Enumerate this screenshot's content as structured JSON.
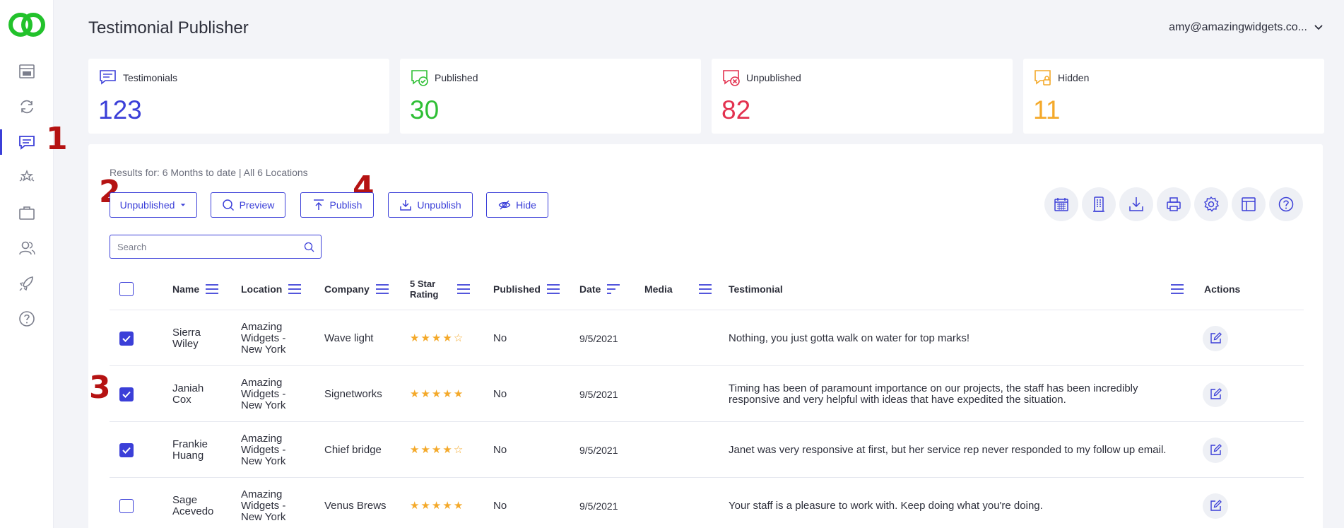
{
  "app": {
    "title": "Testimonial Publisher",
    "user_email": "amy@amazingwidgets.co..."
  },
  "sidebar": {
    "items": [
      {
        "icon": "dashboard-icon"
      },
      {
        "icon": "sync-icon"
      },
      {
        "icon": "testimonials-icon",
        "active": true
      },
      {
        "icon": "rating-stars-icon"
      },
      {
        "icon": "briefcase-icon"
      },
      {
        "icon": "users-icon"
      },
      {
        "icon": "rocket-icon"
      },
      {
        "icon": "help-icon"
      }
    ]
  },
  "annotations": {
    "a1": "1",
    "a2": "2",
    "a3": "3",
    "a4": "4"
  },
  "stats": [
    {
      "label": "Testimonials",
      "value": "123",
      "color": "#3b3fd8"
    },
    {
      "label": "Published",
      "value": "30",
      "color": "#2fbf35"
    },
    {
      "label": "Unpublished",
      "value": "82",
      "color": "#e3314f"
    },
    {
      "label": "Hidden",
      "value": "11",
      "color": "#f4a92a"
    }
  ],
  "filters": {
    "results_text": "Results for: 6 Months to date | All 6 Locations"
  },
  "toolbar": {
    "status_select": "Unpublished",
    "preview": "Preview",
    "publish": "Publish",
    "unpublish": "Unpublish",
    "hide": "Hide"
  },
  "search": {
    "placeholder": "Search"
  },
  "table": {
    "headers": {
      "name": "Name",
      "location": "Location",
      "company": "Company",
      "rating_l1": "5 Star",
      "rating_l2": "Rating",
      "published": "Published",
      "date": "Date",
      "media": "Media",
      "testimonial": "Testimonial",
      "actions": "Actions"
    },
    "rows": [
      {
        "checked": true,
        "first": "Sierra",
        "last": "Wiley",
        "loc1": "Amazing",
        "loc2": "Widgets -",
        "loc3": "New York",
        "company": "Wave light",
        "rating": 4,
        "published": "No",
        "date": "9/5/2021",
        "t1": "Nothing, you just gotta walk on water for top marks!",
        "t2": ""
      },
      {
        "checked": true,
        "first": "Janiah",
        "last": "Cox",
        "loc1": "Amazing",
        "loc2": "Widgets -",
        "loc3": "New York",
        "company": "Signetworks",
        "rating": 5,
        "published": "No",
        "date": "9/5/2021",
        "t1": "Timing has been of paramount importance on our projects, the staff has been incredibly",
        "t2": "responsive and very helpful with ideas that have expedited the situation."
      },
      {
        "checked": true,
        "first": "Frankie",
        "last": "Huang",
        "loc1": "Amazing",
        "loc2": "Widgets -",
        "loc3": "New York",
        "company": "Chief bridge",
        "rating": 4,
        "published": "No",
        "date": "9/5/2021",
        "t1": "Janet was very responsive at first, but her service rep never responded to my follow up email.",
        "t2": ""
      },
      {
        "checked": false,
        "first": "Sage",
        "last": "Acevedo",
        "loc1": "Amazing",
        "loc2": "Widgets -",
        "loc3": "New York",
        "company": "Venus Brews",
        "rating": 5,
        "published": "No",
        "date": "9/5/2021",
        "t1": "Your staff is a pleasure to work with. Keep doing what you're doing.",
        "t2": ""
      }
    ]
  }
}
